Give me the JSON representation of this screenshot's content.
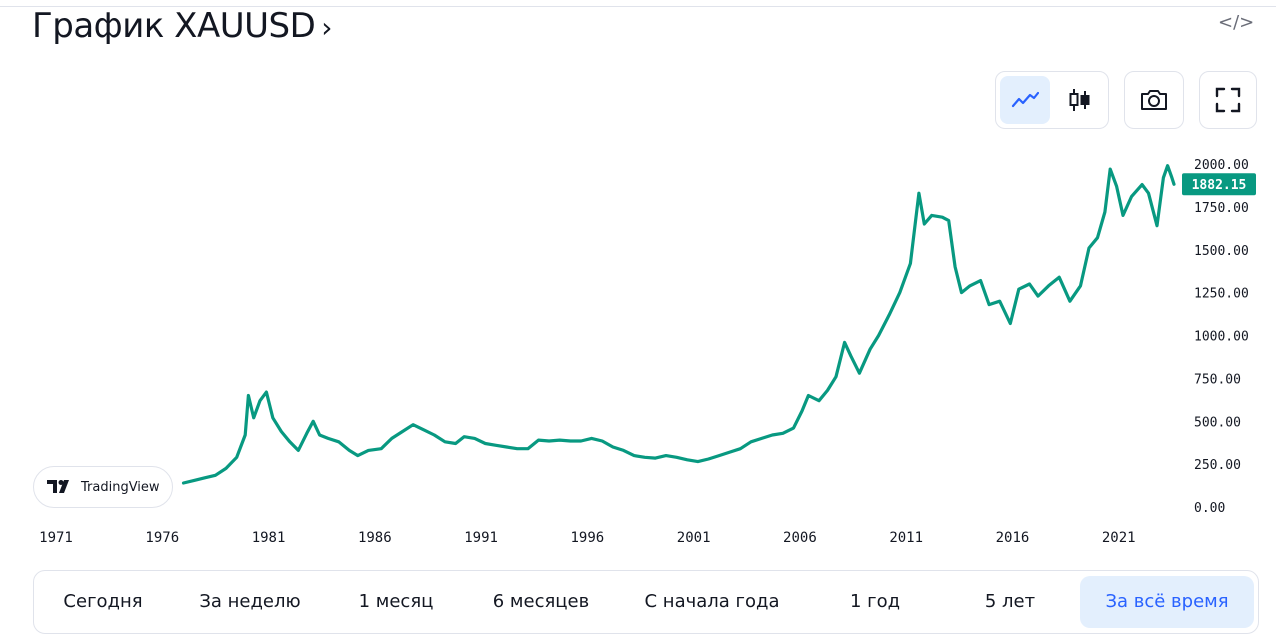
{
  "header": {
    "title": "График XAUUSD",
    "chevron": "›",
    "embed_icon": "code-embed-icon",
    "embed_glyph": "</>"
  },
  "toolbar": {
    "buttons": [
      {
        "name": "line-chart-button",
        "icon": "line-chart-icon",
        "active": true
      },
      {
        "name": "candles-chart-button",
        "icon": "candlestick-icon",
        "active": false
      },
      {
        "name": "snapshot-button",
        "icon": "camera-icon",
        "active": false
      },
      {
        "name": "fullscreen-button",
        "icon": "fullscreen-icon",
        "active": false
      }
    ]
  },
  "watermark": {
    "label": "TradingView",
    "icon": "tradingview-logo-icon"
  },
  "chart_data": {
    "type": "area",
    "title": "График XAUUSD",
    "xlabel": "",
    "ylabel": "",
    "x_range": [
      1971,
      2023.6
    ],
    "ylim": [
      0,
      2000
    ],
    "x_ticks": [
      "1971",
      "1976",
      "1981",
      "1986",
      "1991",
      "1996",
      "2001",
      "2006",
      "2011",
      "2016",
      "2021"
    ],
    "y_ticks": [
      "2000.00",
      "1750.00",
      "1500.00",
      "1250.00",
      "1000.00",
      "750.00",
      "500.00",
      "250.00",
      "0.00"
    ],
    "last_price": 1882.15,
    "last_price_label": "1882.15",
    "series": [
      {
        "name": "XAUUSD",
        "color": "#089981",
        "points": [
          [
            1977.0,
            140
          ],
          [
            1977.5,
            155
          ],
          [
            1978.0,
            170
          ],
          [
            1978.5,
            185
          ],
          [
            1979.0,
            225
          ],
          [
            1979.5,
            290
          ],
          [
            1979.9,
            420
          ],
          [
            1980.05,
            650
          ],
          [
            1980.3,
            520
          ],
          [
            1980.6,
            620
          ],
          [
            1980.9,
            670
          ],
          [
            1981.2,
            520
          ],
          [
            1981.6,
            440
          ],
          [
            1982.0,
            380
          ],
          [
            1982.4,
            330
          ],
          [
            1982.8,
            430
          ],
          [
            1983.1,
            500
          ],
          [
            1983.4,
            420
          ],
          [
            1983.8,
            400
          ],
          [
            1984.3,
            380
          ],
          [
            1984.8,
            330
          ],
          [
            1985.2,
            300
          ],
          [
            1985.7,
            330
          ],
          [
            1986.3,
            340
          ],
          [
            1986.8,
            400
          ],
          [
            1987.3,
            440
          ],
          [
            1987.8,
            480
          ],
          [
            1988.3,
            450
          ],
          [
            1988.8,
            420
          ],
          [
            1989.3,
            380
          ],
          [
            1989.8,
            370
          ],
          [
            1990.2,
            410
          ],
          [
            1990.7,
            400
          ],
          [
            1991.2,
            370
          ],
          [
            1991.7,
            360
          ],
          [
            1992.2,
            350
          ],
          [
            1992.7,
            340
          ],
          [
            1993.2,
            340
          ],
          [
            1993.7,
            390
          ],
          [
            1994.2,
            385
          ],
          [
            1994.7,
            390
          ],
          [
            1995.2,
            385
          ],
          [
            1995.7,
            385
          ],
          [
            1996.2,
            400
          ],
          [
            1996.7,
            385
          ],
          [
            1997.2,
            350
          ],
          [
            1997.7,
            330
          ],
          [
            1998.2,
            300
          ],
          [
            1998.7,
            290
          ],
          [
            1999.2,
            285
          ],
          [
            1999.7,
            300
          ],
          [
            2000.2,
            290
          ],
          [
            2000.7,
            275
          ],
          [
            2001.2,
            265
          ],
          [
            2001.7,
            280
          ],
          [
            2002.2,
            300
          ],
          [
            2002.7,
            320
          ],
          [
            2003.2,
            340
          ],
          [
            2003.7,
            380
          ],
          [
            2004.2,
            400
          ],
          [
            2004.7,
            420
          ],
          [
            2005.2,
            430
          ],
          [
            2005.7,
            460
          ],
          [
            2006.1,
            560
          ],
          [
            2006.4,
            650
          ],
          [
            2006.9,
            620
          ],
          [
            2007.3,
            680
          ],
          [
            2007.7,
            760
          ],
          [
            2008.1,
            960
          ],
          [
            2008.4,
            880
          ],
          [
            2008.8,
            780
          ],
          [
            2009.3,
            920
          ],
          [
            2009.7,
            1000
          ],
          [
            2010.2,
            1120
          ],
          [
            2010.7,
            1250
          ],
          [
            2011.2,
            1420
          ],
          [
            2011.6,
            1830
          ],
          [
            2011.85,
            1650
          ],
          [
            2012.2,
            1700
          ],
          [
            2012.7,
            1690
          ],
          [
            2013.0,
            1670
          ],
          [
            2013.3,
            1400
          ],
          [
            2013.6,
            1250
          ],
          [
            2014.0,
            1290
          ],
          [
            2014.5,
            1320
          ],
          [
            2014.9,
            1180
          ],
          [
            2015.4,
            1200
          ],
          [
            2015.9,
            1070
          ],
          [
            2016.3,
            1270
          ],
          [
            2016.8,
            1300
          ],
          [
            2017.2,
            1230
          ],
          [
            2017.7,
            1290
          ],
          [
            2018.2,
            1340
          ],
          [
            2018.7,
            1200
          ],
          [
            2019.2,
            1290
          ],
          [
            2019.6,
            1510
          ],
          [
            2020.0,
            1570
          ],
          [
            2020.35,
            1720
          ],
          [
            2020.6,
            1970
          ],
          [
            2020.9,
            1870
          ],
          [
            2021.2,
            1700
          ],
          [
            2021.6,
            1810
          ],
          [
            2022.1,
            1880
          ],
          [
            2022.4,
            1830
          ],
          [
            2022.8,
            1640
          ],
          [
            2023.1,
            1920
          ],
          [
            2023.3,
            1990
          ],
          [
            2023.5,
            1920
          ],
          [
            2023.6,
            1882
          ]
        ]
      }
    ]
  },
  "ranges": {
    "items": [
      {
        "label": "Сегодня",
        "active": false
      },
      {
        "label": "За неделю",
        "active": false
      },
      {
        "label": "1 месяц",
        "active": false
      },
      {
        "label": "6 месяцев",
        "active": false
      },
      {
        "label": "С начала года",
        "active": false
      },
      {
        "label": "1 год",
        "active": false
      },
      {
        "label": "5 лет",
        "active": false
      },
      {
        "label": "За всё время",
        "active": true
      }
    ]
  }
}
